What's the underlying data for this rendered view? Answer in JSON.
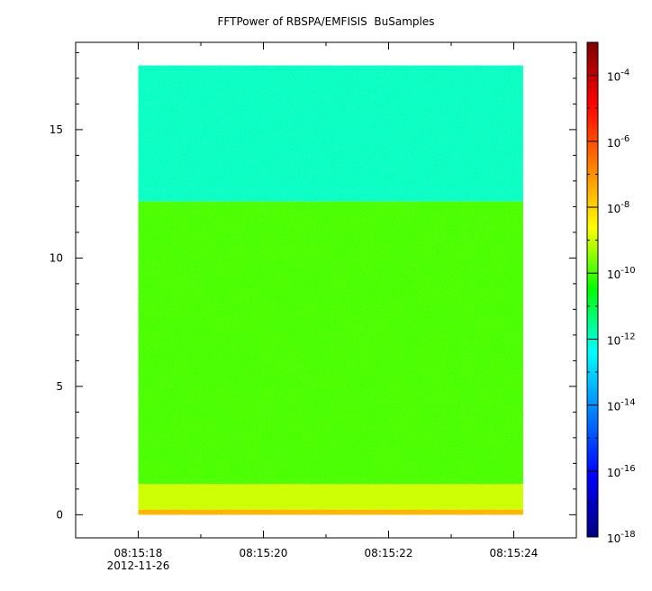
{
  "chart_data": {
    "type": "heatmap",
    "title": "FFTPower of RBSPA/EMFISIS  BuSamples",
    "xlabel": "",
    "ylabel": "",
    "x_ticks": [
      "08:15:18",
      "08:15:20",
      "08:15:22",
      "08:15:24"
    ],
    "x_date_label": "2012-11-26",
    "x_range": [
      "08:15:17.0",
      "08:15:25.0"
    ],
    "data_time_range": [
      "08:15:18.0",
      "08:15:24.15"
    ],
    "y_range": [
      -0.9,
      18.4
    ],
    "y_ticks": [
      0,
      5,
      10,
      15
    ],
    "data_y_range": [
      0,
      17.5
    ],
    "z_scale": "log",
    "z_range": [
      1e-18,
      0.001
    ],
    "z_ticks": [
      {
        "base": "10",
        "exp": "-4",
        "value": -4
      },
      {
        "base": "10",
        "exp": "-6",
        "value": -6
      },
      {
        "base": "10",
        "exp": "-8",
        "value": -8
      },
      {
        "base": "10",
        "exp": "-10",
        "value": -10
      },
      {
        "base": "10",
        "exp": "-12",
        "value": -12
      },
      {
        "base": "10",
        "exp": "-14",
        "value": -14
      },
      {
        "base": "10",
        "exp": "-16",
        "value": -16
      },
      {
        "base": "10",
        "exp": "-18",
        "value": -18
      }
    ],
    "colormap": [
      "#00007f",
      "#0000ff",
      "#00ffff",
      "#00ff00",
      "#ffff00",
      "#ff0000",
      "#7f0000"
    ],
    "bands": [
      {
        "y_from": 12.2,
        "y_to": 17.5,
        "log_power": -12.0
      },
      {
        "y_from": 1.2,
        "y_to": 12.2,
        "log_power": -10.0
      },
      {
        "y_from": 0.2,
        "y_to": 1.2,
        "log_power": -9.0
      },
      {
        "y_from": 0.0,
        "y_to": 0.2,
        "log_power": -7.5
      }
    ],
    "grid": false
  }
}
